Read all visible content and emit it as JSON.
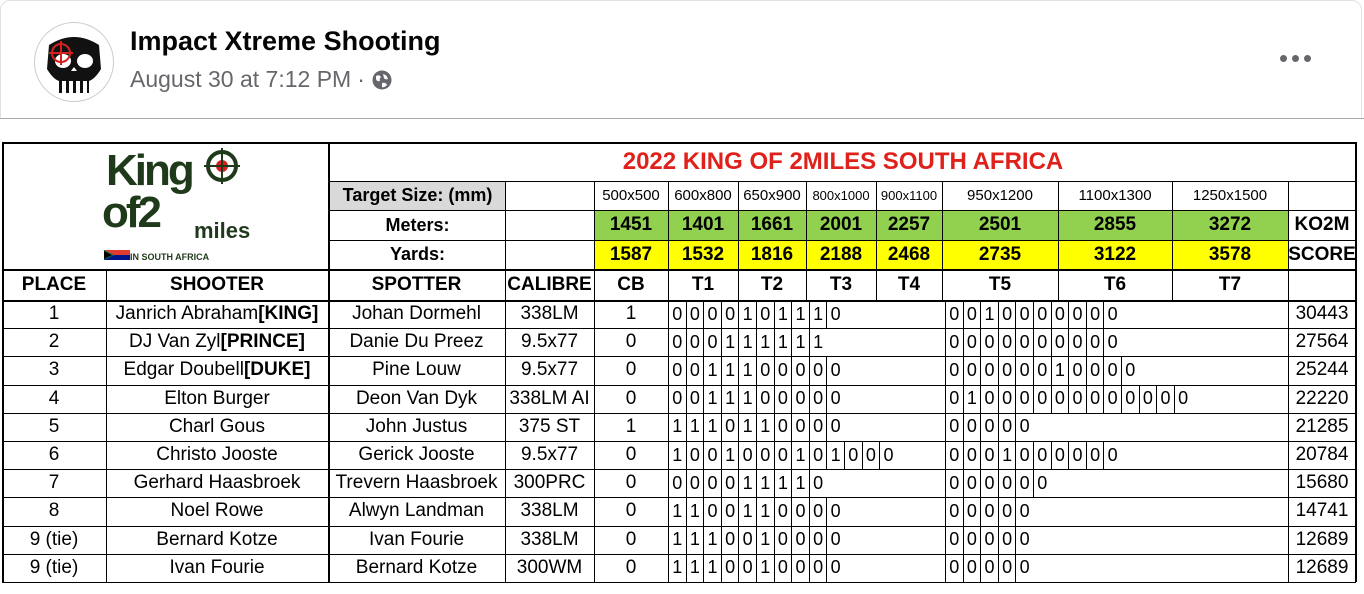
{
  "post": {
    "page_name": "Impact Xtreme Shooting",
    "timestamp": "August 30 at 7:12 PM",
    "separator": "·",
    "privacy_icon": "globe-icon",
    "more_icon": "more-options-icon",
    "avatar_icon": "punisher-skull-icon"
  },
  "sheet": {
    "logo": {
      "line1": "King",
      "line2": "of2",
      "line3": "miles",
      "line4": "IN SOUTH AFRICA"
    },
    "title": "2022 KING OF 2MILES SOUTH AFRICA",
    "rows_labels": {
      "target_size": "Target Size: (mm)",
      "meters": "Meters:",
      "yards": "Yards:"
    },
    "target_sizes": [
      "500x500",
      "600x800",
      "650x900",
      "800x1000",
      "900x1100",
      "950x1200",
      "1100x1300",
      "1250x1500"
    ],
    "meters": [
      "1451",
      "1401",
      "1661",
      "2001",
      "2257",
      "2501",
      "2855",
      "3272"
    ],
    "yards": [
      "1587",
      "1532",
      "1816",
      "2188",
      "2468",
      "2735",
      "3122",
      "3578"
    ],
    "ko2m": "KO2M",
    "score_label": "SCORE",
    "headers": [
      "PLACE",
      "SHOOTER",
      "SPOTTER",
      "CALIBRE",
      "CB",
      "T1",
      "T2",
      "T3",
      "T4",
      "T5",
      "T6",
      "T7"
    ],
    "colors": {
      "title_red": "#e0201b",
      "meters_green": "#92d050",
      "yards_yellow": "#ffff00",
      "header_grey": "#d9d9d9"
    },
    "rows": [
      {
        "place": "1",
        "shooter": "Janrich Abraham ",
        "rank": "[KING]",
        "spotter": "Johan Dormehl",
        "calibre": "338LM",
        "cb": "1",
        "shots1": "0000101110",
        "shots2": "0010000000",
        "score": "30443"
      },
      {
        "place": "2",
        "shooter": "DJ Van Zyl ",
        "rank": "[PRINCE]",
        "spotter": "Danie Du Preez",
        "calibre": "9.5x77",
        "cb": "0",
        "shots1": "000111111",
        "shots2": "0000000000",
        "score": "27564"
      },
      {
        "place": "3",
        "shooter": "Edgar Doubell ",
        "rank": "[DUKE]",
        "spotter": "Pine Louw",
        "calibre": "9.5x77",
        "cb": "0",
        "shots1": "0011100000",
        "shots2": "00000010000",
        "score": "25244"
      },
      {
        "place": "4",
        "shooter": "Elton Burger",
        "rank": "",
        "spotter": "Deon Van Dyk",
        "calibre": "338LM AI",
        "cb": "0",
        "shots1": "0011100000",
        "shots2": "01000000000000",
        "score": "22220"
      },
      {
        "place": "5",
        "shooter": "Charl Gous",
        "rank": "",
        "spotter": "John Justus",
        "calibre": "375 ST",
        "cb": "1",
        "shots1": "1110110000",
        "shots2": "00000",
        "score": "21285"
      },
      {
        "place": "6",
        "shooter": "Christo Jooste",
        "rank": "",
        "spotter": "Gerick Jooste",
        "calibre": "9.5x77",
        "cb": "0",
        "shots1": "1001000101000",
        "shots2": "0001000000",
        "score": "20784"
      },
      {
        "place": "7",
        "shooter": "Gerhard Haasbroek",
        "rank": "",
        "spotter": "Trevern Haasbroek",
        "calibre": "300PRC",
        "cb": "0",
        "shots1": "000011110",
        "shots2": "000000",
        "score": "15680"
      },
      {
        "place": "8",
        "shooter": "Noel Rowe",
        "rank": "",
        "spotter": "Alwyn Landman",
        "calibre": "338LM",
        "cb": "0",
        "shots1": "1100110000",
        "shots2": "00000",
        "score": "14741"
      },
      {
        "place": "9 (tie)",
        "shooter": "Bernard Kotze",
        "rank": "",
        "spotter": "Ivan Fourie",
        "calibre": "338LM",
        "cb": "0",
        "shots1": "1110010000",
        "shots2": "00000",
        "score": "12689"
      },
      {
        "place": "9 (tie)",
        "shooter": "Ivan Fourie",
        "rank": "",
        "spotter": "Bernard Kotze",
        "calibre": "300WM",
        "cb": "0",
        "shots1": "1110010000",
        "shots2": "00000",
        "score": "12689"
      }
    ]
  }
}
